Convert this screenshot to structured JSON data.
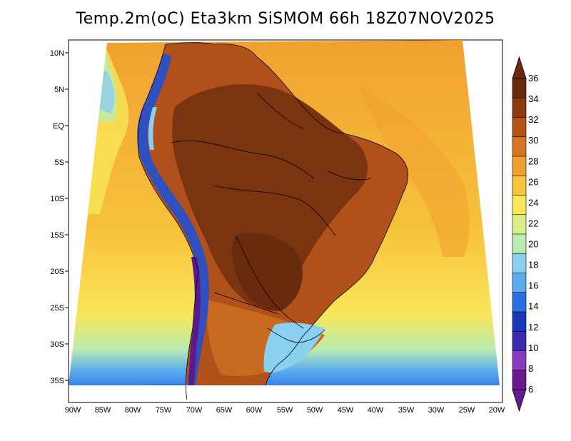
{
  "title": "Temp.2m(oC) Eta3km SiSMOM 66h 18Z07NOV2025",
  "map": {
    "variable": "Temp.2m",
    "unit": "oC",
    "model": "Eta3km SiSMOM",
    "forecast_hour": "66h",
    "valid_time": "18Z07NOV2025",
    "lon_labels": [
      "90W",
      "85W",
      "80W",
      "75W",
      "70W",
      "65W",
      "60W",
      "55W",
      "50W",
      "45W",
      "40W",
      "35W",
      "30W",
      "25W",
      "20W"
    ],
    "lat_labels": [
      "10N",
      "5N",
      "EQ",
      "5S",
      "10S",
      "15S",
      "20S",
      "25S",
      "30S",
      "35S"
    ]
  },
  "colorbar": {
    "labels": [
      "36",
      "34",
      "32",
      "30",
      "28",
      "26",
      "24",
      "22",
      "20",
      "18",
      "16",
      "14",
      "12",
      "10",
      "8",
      "6"
    ],
    "colors": [
      "#6a2a0e",
      "#8c3a10",
      "#b55216",
      "#d97320",
      "#f0a030",
      "#f7c23c",
      "#f9e65a",
      "#d9f08a",
      "#b8ecb0",
      "#8ad0f0",
      "#5aaaf0",
      "#2a70e0",
      "#1838b8",
      "#3a2ab0",
      "#8a3ac0",
      "#6a1a90"
    ]
  },
  "palette": {
    "ocean": "#f7b63a",
    "ocean_warm": "#f2a534",
    "ocean_cool": "#f9d85a",
    "land_hot": "#7a3410",
    "land_warm": "#b0501a",
    "south_land": "#c86a20",
    "andes": "#3050c0",
    "andes_core": "#5a1a8a",
    "pampa": "#8ac8f0",
    "cold_coast": "#5aaaf0",
    "patagonia": "#2a50d0",
    "border": "#000000"
  }
}
